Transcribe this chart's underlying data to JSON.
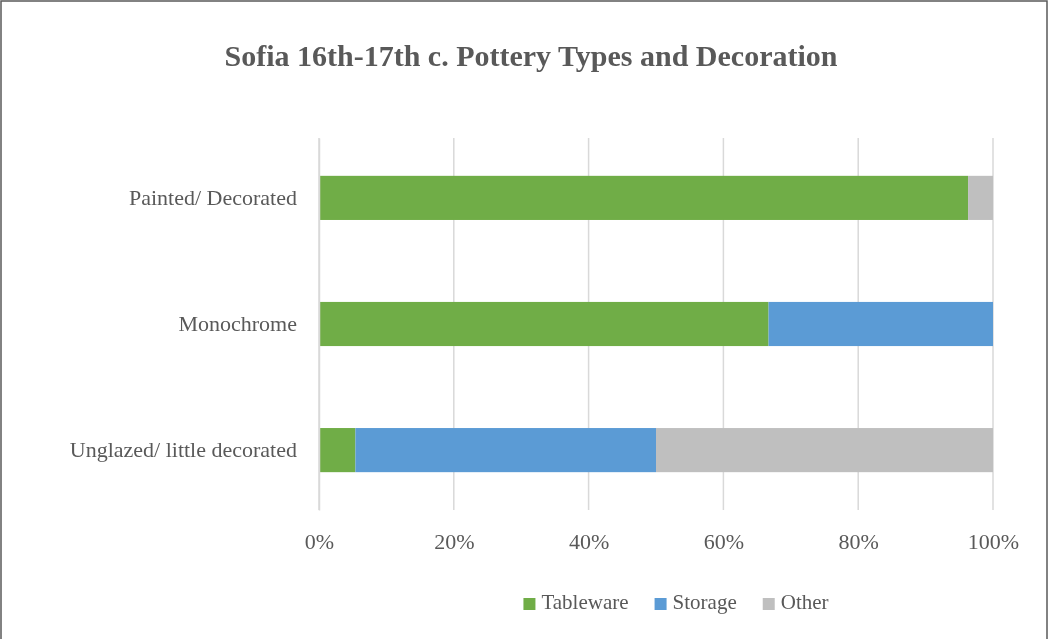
{
  "chart_data": {
    "type": "bar",
    "orientation": "horizontal",
    "stacked": true,
    "title": "Sofia 16th-17th c. Pottery Types and Decoration",
    "categories": [
      "Painted/ Decorated",
      "Monochrome",
      "Unglazed/ little decorated"
    ],
    "series": [
      {
        "name": "Tableware",
        "color": "#70ad47",
        "values": [
          96.3,
          66.7,
          5.4
        ]
      },
      {
        "name": "Storage",
        "color": "#5b9bd5",
        "values": [
          0,
          33.3,
          44.6
        ]
      },
      {
        "name": "Other",
        "color": "#bfbfbf",
        "values": [
          3.7,
          0,
          50
        ]
      }
    ],
    "xlim": [
      0,
      100
    ],
    "xticks": [
      {
        "value": 0,
        "label": "0%"
      },
      {
        "value": 20,
        "label": "20%"
      },
      {
        "value": 40,
        "label": "40%"
      },
      {
        "value": 60,
        "label": "60%"
      },
      {
        "value": 80,
        "label": "80%"
      },
      {
        "value": 100,
        "label": "100%"
      }
    ],
    "grid": "x",
    "legend": "bottom"
  }
}
